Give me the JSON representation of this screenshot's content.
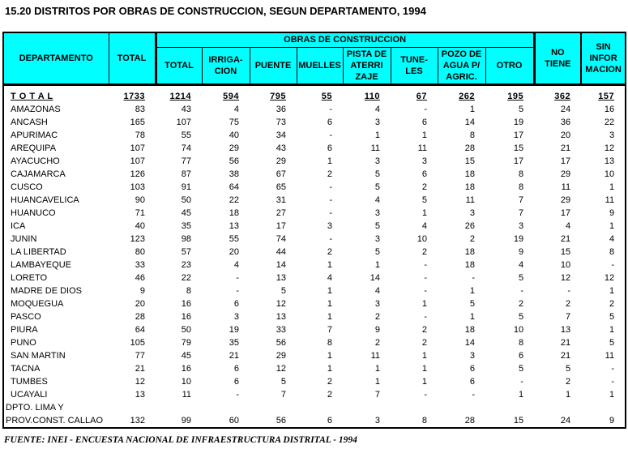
{
  "title": "15.20 DISTRITOS POR OBRAS DE CONSTRUCCION, SEGUN DEPARTAMENTO, 1994",
  "footer": "FUENTE: INEI -  ENCUESTA NACIONAL DE INFRAESTRUCTURA DISTRITAL -  1994",
  "colors": {
    "header_bg": "#00FFFF",
    "border": "#000000",
    "text": "#000000"
  },
  "table": {
    "header": {
      "departamento": "DEPARTAMENTO",
      "total": "TOTAL",
      "group": "OBRAS DE CONSTRUCCION",
      "sub": [
        "TOTAL",
        "IRRIGA-\nCION",
        "PUENTE",
        "MUELLES",
        "PISTA DE\nATERRI\nZAJE",
        "TUNE-\nLES",
        "POZO DE\nAGUA P/\nAGRIC.",
        "OTRO"
      ],
      "no_tiene": "NO\nTIENE",
      "sin_informacion": "SIN\nINFOR\nMACION"
    },
    "rows": [
      {
        "label": "T O T A L",
        "style": "total",
        "values": [
          "1733",
          "1214",
          "594",
          "795",
          "55",
          "110",
          "67",
          "262",
          "195",
          "362",
          "157"
        ]
      },
      {
        "label": "AMAZONAS",
        "style": "",
        "values": [
          "83",
          "43",
          "4",
          "36",
          "-",
          "4",
          "-",
          "1",
          "5",
          "24",
          "16"
        ]
      },
      {
        "label": "ANCASH",
        "style": "",
        "values": [
          "165",
          "107",
          "75",
          "73",
          "6",
          "3",
          "6",
          "14",
          "19",
          "36",
          "22"
        ]
      },
      {
        "label": "APURIMAC",
        "style": "",
        "values": [
          "78",
          "55",
          "40",
          "34",
          "-",
          "1",
          "1",
          "8",
          "17",
          "20",
          "3"
        ]
      },
      {
        "label": "AREQUIPA",
        "style": "",
        "values": [
          "107",
          "74",
          "29",
          "43",
          "6",
          "11",
          "11",
          "28",
          "15",
          "21",
          "12"
        ]
      },
      {
        "label": "AYACUCHO",
        "style": "",
        "values": [
          "107",
          "77",
          "56",
          "29",
          "1",
          "3",
          "3",
          "15",
          "17",
          "17",
          "13"
        ]
      },
      {
        "label": "CAJAMARCA",
        "style": "",
        "values": [
          "126",
          "87",
          "38",
          "67",
          "2",
          "5",
          "6",
          "18",
          "8",
          "29",
          "10"
        ]
      },
      {
        "label": "CUSCO",
        "style": "",
        "values": [
          "103",
          "91",
          "64",
          "65",
          "-",
          "5",
          "2",
          "18",
          "8",
          "11",
          "1"
        ]
      },
      {
        "label": "HUANCAVELICA",
        "style": "",
        "values": [
          "90",
          "50",
          "22",
          "31",
          "-",
          "4",
          "5",
          "11",
          "7",
          "29",
          "11"
        ]
      },
      {
        "label": "HUANUCO",
        "style": "",
        "values": [
          "71",
          "45",
          "18",
          "27",
          "-",
          "3",
          "1",
          "3",
          "7",
          "17",
          "9"
        ]
      },
      {
        "label": "ICA",
        "style": "",
        "values": [
          "40",
          "35",
          "13",
          "17",
          "3",
          "5",
          "4",
          "26",
          "3",
          "4",
          "1"
        ]
      },
      {
        "label": "JUNIN",
        "style": "",
        "values": [
          "123",
          "98",
          "55",
          "74",
          "-",
          "3",
          "10",
          "2",
          "19",
          "21",
          "4"
        ]
      },
      {
        "label": "LA LIBERTAD",
        "style": "",
        "values": [
          "80",
          "57",
          "20",
          "44",
          "2",
          "5",
          "2",
          "18",
          "9",
          "15",
          "8"
        ]
      },
      {
        "label": "LAMBAYEQUE",
        "style": "",
        "values": [
          "33",
          "23",
          "4",
          "14",
          "1",
          "1",
          "-",
          "18",
          "4",
          "10",
          "-"
        ]
      },
      {
        "label": "LORETO",
        "style": "",
        "values": [
          "46",
          "22",
          "-",
          "13",
          "4",
          "14",
          "-",
          "-",
          "5",
          "12",
          "12"
        ]
      },
      {
        "label": "MADRE DE DIOS",
        "style": "",
        "values": [
          "9",
          "8",
          "-",
          "5",
          "1",
          "4",
          "-",
          "1",
          "-",
          "-",
          "1"
        ]
      },
      {
        "label": "MOQUEGUA",
        "style": "",
        "values": [
          "20",
          "16",
          "6",
          "12",
          "1",
          "3",
          "1",
          "5",
          "2",
          "2",
          "2"
        ]
      },
      {
        "label": "PASCO",
        "style": "",
        "values": [
          "28",
          "16",
          "3",
          "13",
          "1",
          "2",
          "-",
          "1",
          "5",
          "7",
          "5"
        ]
      },
      {
        "label": "PIURA",
        "style": "",
        "values": [
          "64",
          "50",
          "19",
          "33",
          "7",
          "9",
          "2",
          "18",
          "10",
          "13",
          "1"
        ]
      },
      {
        "label": "PUNO",
        "style": "",
        "values": [
          "105",
          "79",
          "35",
          "56",
          "8",
          "2",
          "2",
          "14",
          "8",
          "21",
          "5"
        ]
      },
      {
        "label": "SAN MARTIN",
        "style": "",
        "values": [
          "77",
          "45",
          "21",
          "29",
          "1",
          "11",
          "1",
          "3",
          "6",
          "21",
          "11"
        ]
      },
      {
        "label": "TACNA",
        "style": "",
        "values": [
          "21",
          "16",
          "6",
          "12",
          "1",
          "1",
          "1",
          "6",
          "5",
          "5",
          "-"
        ]
      },
      {
        "label": "TUMBES",
        "style": "",
        "values": [
          "12",
          "10",
          "6",
          "5",
          "2",
          "1",
          "1",
          "6",
          "-",
          "2",
          "-"
        ]
      },
      {
        "label": "UCAYALI",
        "style": "",
        "values": [
          "13",
          "11",
          "-",
          "7",
          "2",
          "7",
          "-",
          "-",
          "1",
          "1",
          "1"
        ]
      },
      {
        "label": "DPTO. LIMA Y",
        "style": "",
        "flush": true,
        "values": [
          "",
          "",
          "",
          "",
          "",
          "",
          "",
          "",
          "",
          "",
          ""
        ]
      },
      {
        "label": "PROV.CONST. CALLAO",
        "style": "",
        "flush": true,
        "values": [
          "132",
          "99",
          "60",
          "56",
          "6",
          "3",
          "8",
          "28",
          "15",
          "24",
          "9"
        ]
      }
    ]
  }
}
